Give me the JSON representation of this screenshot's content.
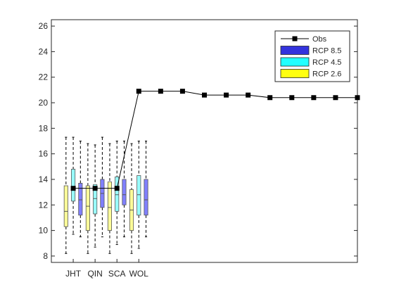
{
  "chart_data": {
    "type": "boxplot",
    "title": "",
    "xlabel": "",
    "ylabel": "",
    "ylim": [
      7.5,
      26.5
    ],
    "yticks": [
      8,
      10,
      12,
      14,
      16,
      18,
      20,
      22,
      24,
      26
    ],
    "grid": false,
    "legend_position": "top-right",
    "categories": [
      "JHT",
      "QIN",
      "SCA",
      "WOL"
    ],
    "series": [
      {
        "name": "RCP 2.6",
        "color": "#ffff99",
        "boxes": [
          {
            "whisker_low": 8.2,
            "q1": 10.3,
            "median": 11.5,
            "q3": 13.5,
            "whisker_high": 17.3
          },
          {
            "whisker_low": 8.2,
            "q1": 10.0,
            "median": 11.9,
            "q3": 13.5,
            "whisker_high": 16.8
          },
          {
            "whisker_low": 8.2,
            "q1": 10.0,
            "median": 11.8,
            "q3": 13.8,
            "whisker_high": 16.8
          },
          {
            "whisker_low": 8.2,
            "q1": 10.0,
            "median": 11.6,
            "q3": 13.2,
            "whisker_high": 16.8
          }
        ]
      },
      {
        "name": "RCP 4.5",
        "color": "#99ffff",
        "boxes": [
          {
            "whisker_low": 9.7,
            "q1": 12.3,
            "median": 13.3,
            "q3": 14.8,
            "whisker_high": 17.3
          },
          {
            "whisker_low": 8.7,
            "q1": 11.3,
            "median": 12.5,
            "q3": 13.6,
            "whisker_high": 16.7
          },
          {
            "whisker_low": 8.9,
            "q1": 11.5,
            "median": 12.8,
            "q3": 14.2,
            "whisker_high": 17.0
          },
          {
            "whisker_low": 8.6,
            "q1": 11.2,
            "median": 12.8,
            "q3": 14.3,
            "whisker_high": 17.0
          }
        ]
      },
      {
        "name": "RCP 8.5",
        "color": "#8080ff",
        "boxes": [
          {
            "whisker_low": 9.5,
            "q1": 11.2,
            "median": 12.4,
            "q3": 13.7,
            "whisker_high": 17.0
          },
          {
            "whisker_low": 9.5,
            "q1": 11.8,
            "median": 12.9,
            "q3": 14.0,
            "whisker_high": 17.3
          },
          {
            "whisker_low": 9.5,
            "q1": 12.0,
            "median": 12.8,
            "q3": 14.0,
            "whisker_high": 17.0
          },
          {
            "whisker_low": 9.5,
            "q1": 11.2,
            "median": 12.4,
            "q3": 14.0,
            "whisker_high": 17.0
          }
        ]
      }
    ],
    "obs": {
      "name": "Obs",
      "color": "#000000",
      "x": [
        1,
        2,
        3,
        4,
        5,
        6,
        7,
        8,
        9,
        10,
        11,
        12,
        13,
        14
      ],
      "y": [
        13.3,
        13.3,
        13.3,
        20.9,
        20.9,
        20.9,
        20.6,
        20.6,
        20.6,
        20.4,
        20.4,
        20.4,
        20.4,
        20.4
      ]
    },
    "legend": [
      {
        "label": "Obs",
        "kind": "line-marker",
        "color": "#000000"
      },
      {
        "label": "RCP 8.5",
        "kind": "patch",
        "color": "#3333dd"
      },
      {
        "label": "RCP 4.5",
        "kind": "patch",
        "color": "#22ffff"
      },
      {
        "label": "RCP 2.6",
        "kind": "patch",
        "color": "#ffff11"
      }
    ]
  }
}
